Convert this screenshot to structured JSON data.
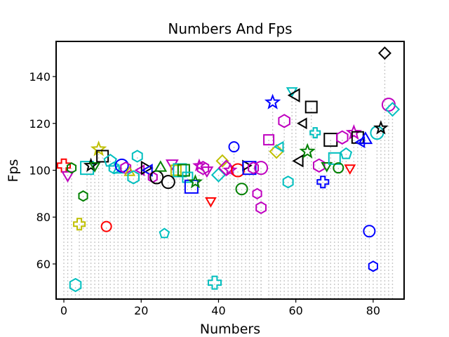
{
  "chart_data": {
    "type": "scatter",
    "title": "Numbers And Fps",
    "xlabel": "Numbers",
    "ylabel": "Fps",
    "xlim": [
      -2,
      88
    ],
    "ylim": [
      45,
      155
    ],
    "xticks": [
      0,
      20,
      40,
      60,
      80
    ],
    "yticks": [
      60,
      80,
      100,
      120,
      140
    ],
    "grid": false,
    "stems": true,
    "marker_cycle": [
      "plus",
      "hexagon",
      "triangle_up",
      "star",
      "square",
      "circle",
      "triangle_down",
      "diamond",
      "triangle_left",
      "pentagon"
    ],
    "colors": {
      "red": "#ff0000",
      "magenta": "#bf00bf",
      "green": "#008000",
      "olive": "#bfbf00",
      "cyan": "#00bfbf",
      "blue": "#0000ff",
      "black": "#000000"
    },
    "points": [
      {
        "x": 0,
        "y": 102,
        "marker": "plus",
        "color": "#ff0000"
      },
      {
        "x": 1,
        "y": 98,
        "marker": "triangle_down",
        "color": "#bf00bf"
      },
      {
        "x": 2,
        "y": 101,
        "marker": "hexagon",
        "color": "#008000"
      },
      {
        "x": 3,
        "y": 51,
        "marker": "hexagon",
        "color": "#00bfbf"
      },
      {
        "x": 4,
        "y": 77,
        "marker": "plus",
        "color": "#bfbf00"
      },
      {
        "x": 5,
        "y": 89,
        "marker": "hexagon",
        "color": "#008000"
      },
      {
        "x": 6,
        "y": 101,
        "marker": "square",
        "color": "#00bfbf"
      },
      {
        "x": 7,
        "y": 102,
        "marker": "star",
        "color": "#000000"
      },
      {
        "x": 8,
        "y": 102,
        "marker": "triangle_down",
        "color": "#008000"
      },
      {
        "x": 9,
        "y": 109,
        "marker": "star",
        "color": "#bfbf00"
      },
      {
        "x": 10,
        "y": 106,
        "marker": "square",
        "color": "#000000"
      },
      {
        "x": 11,
        "y": 76,
        "marker": "circle",
        "color": "#ff0000"
      },
      {
        "x": 12,
        "y": 104,
        "marker": "pentagon",
        "color": "#00bfbf"
      },
      {
        "x": 13,
        "y": 101,
        "marker": "hexagon",
        "color": "#00bfbf"
      },
      {
        "x": 14,
        "y": 100,
        "marker": "triangle_up",
        "color": "#00bfbf"
      },
      {
        "x": 15,
        "y": 102,
        "marker": "circle",
        "color": "#0000ff"
      },
      {
        "x": 16,
        "y": 101,
        "marker": "hexagon",
        "color": "#bf00bf"
      },
      {
        "x": 17,
        "y": 99,
        "marker": "triangle_up",
        "color": "#bfbf00"
      },
      {
        "x": 18,
        "y": 97,
        "marker": "hexagon",
        "color": "#00bfbf"
      },
      {
        "x": 19,
        "y": 106,
        "marker": "hexagon",
        "color": "#00bfbf"
      },
      {
        "x": 20,
        "y": 100,
        "marker": "triangle_left",
        "color": "#bf00bf"
      },
      {
        "x": 21,
        "y": 101,
        "marker": "triangle_right",
        "color": "#000000"
      },
      {
        "x": 22,
        "y": 100,
        "marker": "triangle_left",
        "color": "#0000ff"
      },
      {
        "x": 23,
        "y": 97,
        "marker": "hexagon",
        "color": "#bf00bf"
      },
      {
        "x": 24,
        "y": 97,
        "marker": "circle",
        "color": "#000000"
      },
      {
        "x": 25,
        "y": 101,
        "marker": "triangle_up",
        "color": "#008000"
      },
      {
        "x": 26,
        "y": 73,
        "marker": "pentagon",
        "color": "#00bfbf"
      },
      {
        "x": 27,
        "y": 95,
        "marker": "circle",
        "color": "#000000"
      },
      {
        "x": 28,
        "y": 103,
        "marker": "triangle_down",
        "color": "#bf00bf"
      },
      {
        "x": 29,
        "y": 100,
        "marker": "square",
        "color": "#bfbf00"
      },
      {
        "x": 30,
        "y": 100,
        "marker": "square",
        "color": "#00bfbf"
      },
      {
        "x": 31,
        "y": 100,
        "marker": "square",
        "color": "#008000"
      },
      {
        "x": 32,
        "y": 97,
        "marker": "square",
        "color": "#00bfbf"
      },
      {
        "x": 33,
        "y": 93,
        "marker": "square",
        "color": "#0000ff"
      },
      {
        "x": 34,
        "y": 95,
        "marker": "star",
        "color": "#008000"
      },
      {
        "x": 35,
        "y": 102,
        "marker": "star",
        "color": "#bf00bf"
      },
      {
        "x": 36,
        "y": 101,
        "marker": "hexagon",
        "color": "#bf00bf"
      },
      {
        "x": 37,
        "y": 100,
        "marker": "triangle_down",
        "color": "#bf00bf"
      },
      {
        "x": 38,
        "y": 87,
        "marker": "triangle_down",
        "color": "#ff0000"
      },
      {
        "x": 39,
        "y": 52,
        "marker": "plus",
        "color": "#00bfbf"
      },
      {
        "x": 40,
        "y": 98,
        "marker": "diamond",
        "color": "#00bfbf"
      },
      {
        "x": 41,
        "y": 104,
        "marker": "diamond",
        "color": "#bfbf00"
      },
      {
        "x": 42,
        "y": 101,
        "marker": "diamond",
        "color": "#bf00bf"
      },
      {
        "x": 43,
        "y": 100,
        "marker": "star",
        "color": "#bf00bf"
      },
      {
        "x": 44,
        "y": 110,
        "marker": "circle",
        "color": "#0000ff"
      },
      {
        "x": 45,
        "y": 100,
        "marker": "circle",
        "color": "#ff0000"
      },
      {
        "x": 46,
        "y": 92,
        "marker": "circle",
        "color": "#008000"
      },
      {
        "x": 47,
        "y": 102,
        "marker": "triangle_right",
        "color": "#000000"
      },
      {
        "x": 48,
        "y": 101,
        "marker": "square",
        "color": "#0000ff"
      },
      {
        "x": 49,
        "y": 101,
        "marker": "hexagon",
        "color": "#bf00bf"
      },
      {
        "x": 50,
        "y": 90,
        "marker": "hexagon",
        "color": "#bf00bf"
      },
      {
        "x": 51,
        "y": 101,
        "marker": "circle",
        "color": "#bf00bf"
      },
      {
        "x": 51,
        "y": 84,
        "marker": "hexagon",
        "color": "#bf00bf"
      },
      {
        "x": 53,
        "y": 113,
        "marker": "square",
        "color": "#bf00bf"
      },
      {
        "x": 54,
        "y": 129,
        "marker": "star",
        "color": "#0000ff"
      },
      {
        "x": 55,
        "y": 108,
        "marker": "diamond",
        "color": "#bfbf00"
      },
      {
        "x": 56,
        "y": 110,
        "marker": "triangle_left",
        "color": "#00bfbf"
      },
      {
        "x": 57,
        "y": 121,
        "marker": "hexagon",
        "color": "#bf00bf"
      },
      {
        "x": 58,
        "y": 95,
        "marker": "hexagon",
        "color": "#00bfbf"
      },
      {
        "x": 59,
        "y": 134,
        "marker": "triangle_down",
        "color": "#00bfbf"
      },
      {
        "x": 60,
        "y": 132,
        "marker": "triangle_left",
        "color": "#000000"
      },
      {
        "x": 61,
        "y": 104,
        "marker": "triangle_left",
        "color": "#000000"
      },
      {
        "x": 62,
        "y": 120,
        "marker": "triangle_left",
        "color": "#000000"
      },
      {
        "x": 63,
        "y": 108,
        "marker": "star",
        "color": "#008000"
      },
      {
        "x": 64,
        "y": 127,
        "marker": "square",
        "color": "#000000"
      },
      {
        "x": 65,
        "y": 116,
        "marker": "plus",
        "color": "#00bfbf"
      },
      {
        "x": 66,
        "y": 102,
        "marker": "hexagon",
        "color": "#bf00bf"
      },
      {
        "x": 67,
        "y": 95,
        "marker": "plus",
        "color": "#0000ff"
      },
      {
        "x": 68,
        "y": 102,
        "marker": "triangle_down",
        "color": "#008000"
      },
      {
        "x": 69,
        "y": 113,
        "marker": "square",
        "color": "#000000"
      },
      {
        "x": 70,
        "y": 105,
        "marker": "square",
        "color": "#00bfbf"
      },
      {
        "x": 71,
        "y": 101,
        "marker": "circle",
        "color": "#008000"
      },
      {
        "x": 72,
        "y": 114,
        "marker": "hexagon",
        "color": "#bf00bf"
      },
      {
        "x": 73,
        "y": 107,
        "marker": "pentagon",
        "color": "#00bfbf"
      },
      {
        "x": 74,
        "y": 101,
        "marker": "triangle_down",
        "color": "#ff0000"
      },
      {
        "x": 75,
        "y": 116,
        "marker": "star",
        "color": "#bf00bf"
      },
      {
        "x": 76,
        "y": 114,
        "marker": "square",
        "color": "#000000"
      },
      {
        "x": 77,
        "y": 112,
        "marker": "triangle_left",
        "color": "#0000ff"
      },
      {
        "x": 78,
        "y": 113,
        "marker": "triangle_up",
        "color": "#0000ff"
      },
      {
        "x": 79,
        "y": 74,
        "marker": "circle",
        "color": "#0000ff"
      },
      {
        "x": 80,
        "y": 59,
        "marker": "hexagon",
        "color": "#0000ff"
      },
      {
        "x": 81,
        "y": 116,
        "marker": "circle",
        "color": "#00bfbf"
      },
      {
        "x": 82,
        "y": 118,
        "marker": "star",
        "color": "#000000"
      },
      {
        "x": 83,
        "y": 150,
        "marker": "diamond",
        "color": "#000000"
      },
      {
        "x": 84,
        "y": 128,
        "marker": "circle",
        "color": "#bf00bf"
      },
      {
        "x": 85,
        "y": 126,
        "marker": "diamond",
        "color": "#00bfbf"
      }
    ]
  }
}
